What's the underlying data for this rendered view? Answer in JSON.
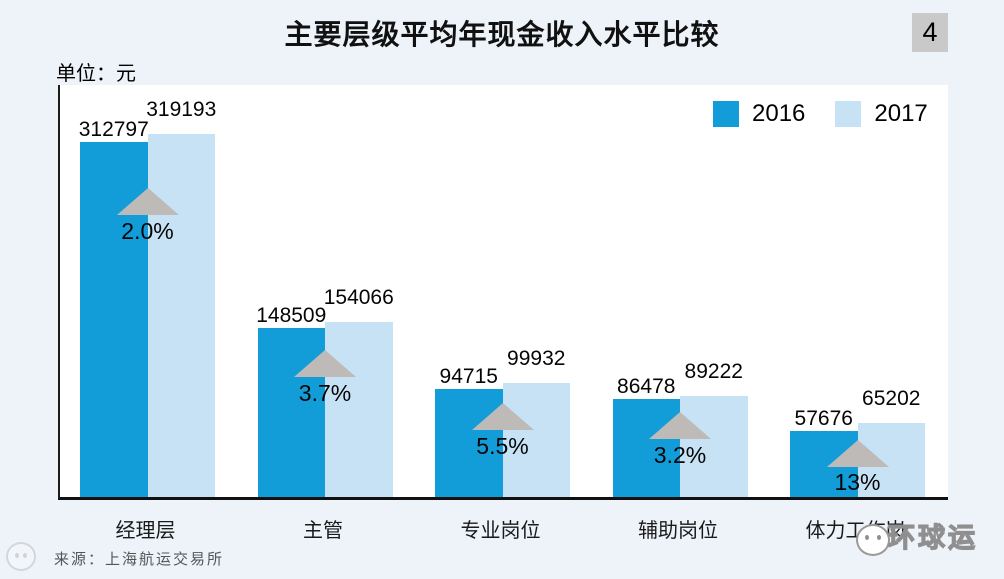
{
  "page": {
    "page_number": "4",
    "unit_label": "单位：元",
    "source": "来源：上海航运交易所",
    "watermark_text": "环球运",
    "background_color": "#edf3f9"
  },
  "chart_data": {
    "type": "bar",
    "title": "主要层级平均年现金收入水平比较",
    "unit": "元",
    "categories": [
      "经理层",
      "主管",
      "专业岗位",
      "辅助岗位",
      "体力工作岗"
    ],
    "series": [
      {
        "name": "2016",
        "color": "#129dd9",
        "values": [
          312797,
          148509,
          94715,
          86478,
          57676
        ]
      },
      {
        "name": "2017",
        "color": "#c7e2f5",
        "values": [
          319193,
          154066,
          99932,
          89222,
          65202
        ]
      }
    ],
    "growth_labels": [
      "2.0%",
      "3.7%",
      "5.5%",
      "3.2%",
      "13%"
    ],
    "growth_arrow_color": "#bdbab7",
    "legend_position": "top-right",
    "grid": false,
    "value_labels_shown": true,
    "ylim": [
      0,
      363000
    ]
  }
}
